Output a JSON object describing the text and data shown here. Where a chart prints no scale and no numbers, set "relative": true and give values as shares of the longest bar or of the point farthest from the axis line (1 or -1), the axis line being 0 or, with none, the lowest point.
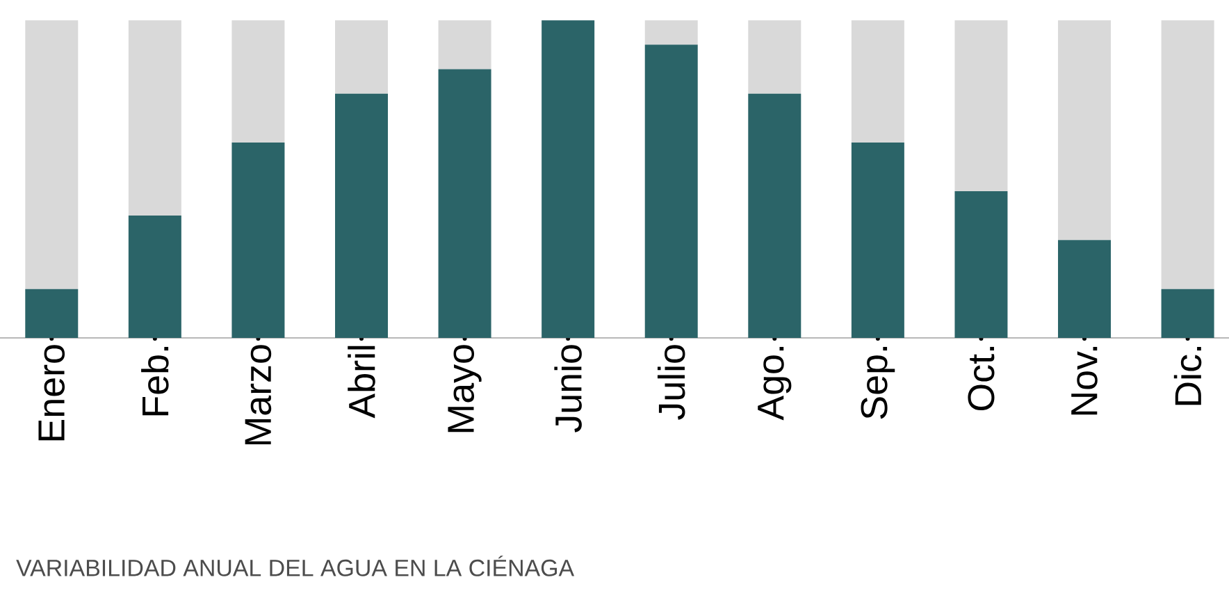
{
  "chart_data": {
    "type": "bar",
    "title": "VARIABILIDAD ANUAL DEL AGUA EN LA CIÉNAGA",
    "relative": true,
    "stacked": true,
    "categories": [
      "Enero",
      "Feb.",
      "Marzo",
      "Abril",
      "Mayo",
      "Junio",
      "Julio",
      "Ago.",
      "Sep.",
      "Oct.",
      "Nov.",
      "Dic."
    ],
    "series": [
      {
        "color": "#2b6468",
        "values": [
          0.154,
          0.385,
          0.615,
          0.769,
          0.846,
          1,
          0.923,
          0.769,
          0.615,
          0.462,
          0.308,
          0.154
        ]
      },
      {
        "color": "#d9d9d9",
        "values": [
          0.846,
          0.615,
          0.385,
          0.231,
          0.154,
          0,
          0.077,
          0.231,
          0.385,
          0.538,
          0.692,
          0.846
        ]
      }
    ]
  }
}
